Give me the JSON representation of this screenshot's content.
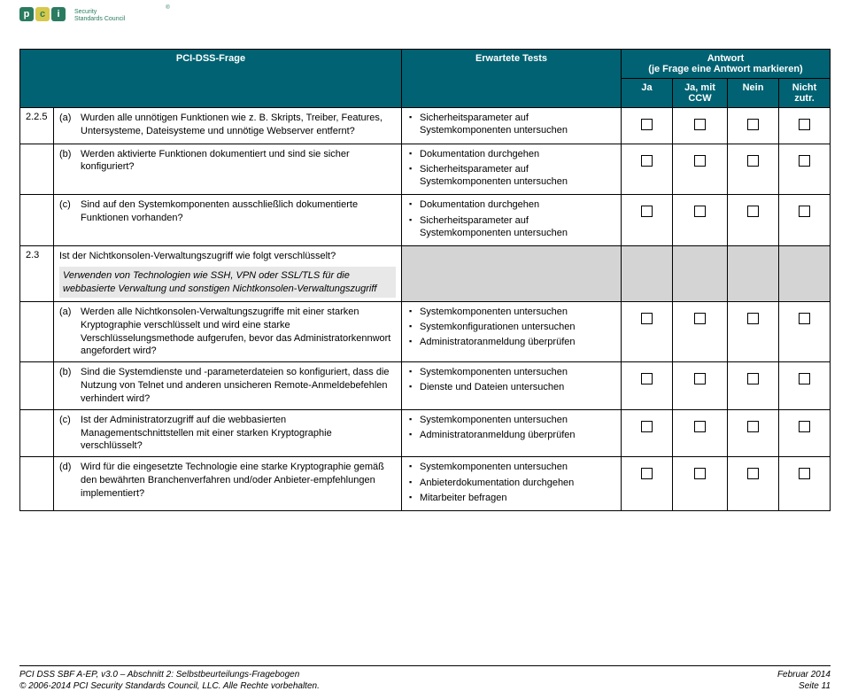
{
  "logo": {
    "letters": [
      "p",
      "c",
      "i"
    ],
    "text1": "Security",
    "text2": "Standards Council",
    "reg": "®"
  },
  "header": {
    "q": "PCI-DSS-Frage",
    "t": "Erwartete Tests",
    "a": "Antwort\n(je Frage eine Antwort markieren)",
    "ja": "Ja",
    "ccw": "Ja, mit CCW",
    "nein": "Nein",
    "nz": "Nicht zutr."
  },
  "rows": [
    {
      "num": "2.2.5",
      "label": "(a)",
      "text": "Wurden alle unnötigen Funktionen wie z. B. Skripts, Treiber, Features, Untersysteme, Dateisysteme und unnötige Webserver entfernt?",
      "tests": [
        "Sicherheitsparameter auf Systemkomponenten untersuchen"
      ],
      "check": true
    },
    {
      "num": "",
      "label": "(b)",
      "text": "Werden aktivierte Funktionen dokumentiert und sind sie sicher konfiguriert?",
      "tests": [
        "Dokumentation durchgehen",
        "Sicherheitsparameter auf Systemkomponenten untersuchen"
      ],
      "check": true
    },
    {
      "num": "",
      "label": "(c)",
      "text": "Sind auf den Systemkomponenten ausschließlich dokumentierte Funktionen vorhanden?",
      "tests": [
        "Dokumentation durchgehen",
        "Sicherheitsparameter auf Systemkomponenten untersuchen"
      ],
      "check": true
    },
    {
      "num": "2.3",
      "label": "",
      "text": "Ist der Nichtkonsolen-Verwaltungszugriff wie folgt verschlüsselt?",
      "note": "Verwenden von Technologien wie SSH, VPN oder SSL/TLS für die webbasierte Verwaltung und sonstigen Nichtkonsolen-Verwaltungszugriff",
      "tests": [],
      "check": false,
      "shade": true
    },
    {
      "num": "",
      "label": "(a)",
      "text": "Werden alle Nichtkonsolen-Verwaltungszugriffe mit einer starken Kryptographie verschlüsselt und wird eine starke Verschlüsselungsmethode aufgerufen, bevor das Administratorkennwort angefordert wird?",
      "tests": [
        "Systemkomponenten untersuchen",
        "Systemkonfigurationen untersuchen",
        "Administratoranmeldung überprüfen"
      ],
      "check": true
    },
    {
      "num": "",
      "label": "(b)",
      "text": "Sind die Systemdienste und -parameterdateien so konfiguriert, dass die Nutzung von Telnet und anderen unsicheren Remote-Anmeldebefehlen verhindert wird?",
      "tests": [
        "Systemkomponenten untersuchen",
        "Dienste und Dateien untersuchen"
      ],
      "check": true
    },
    {
      "num": "",
      "label": "(c)",
      "text": "Ist der Administratorzugriff auf die webbasierten Managementschnittstellen mit einer starken Kryptographie verschlüsselt?",
      "tests": [
        "Systemkomponenten untersuchen",
        "Administratoranmeldung überprüfen"
      ],
      "check": true
    },
    {
      "num": "",
      "label": "(d)",
      "text": "Wird für die eingesetzte Technologie eine starke Kryptographie gemäß den bewährten Branchenverfahren und/oder Anbieter-empfehlungen implementiert?",
      "tests": [
        "Systemkomponenten untersuchen",
        "Anbieterdokumentation durchgehen",
        "Mitarbeiter befragen"
      ],
      "check": true
    }
  ],
  "footer": {
    "l1": "PCI DSS SBF A-EP, v3.0 – Abschnitt 2: Selbstbeurteilungs-Fragebogen",
    "l2": "© 2006-2014 PCI Security Standards Council, LLC. Alle Rechte vorbehalten.",
    "r1": "Februar 2014",
    "r2": "Seite 11"
  }
}
